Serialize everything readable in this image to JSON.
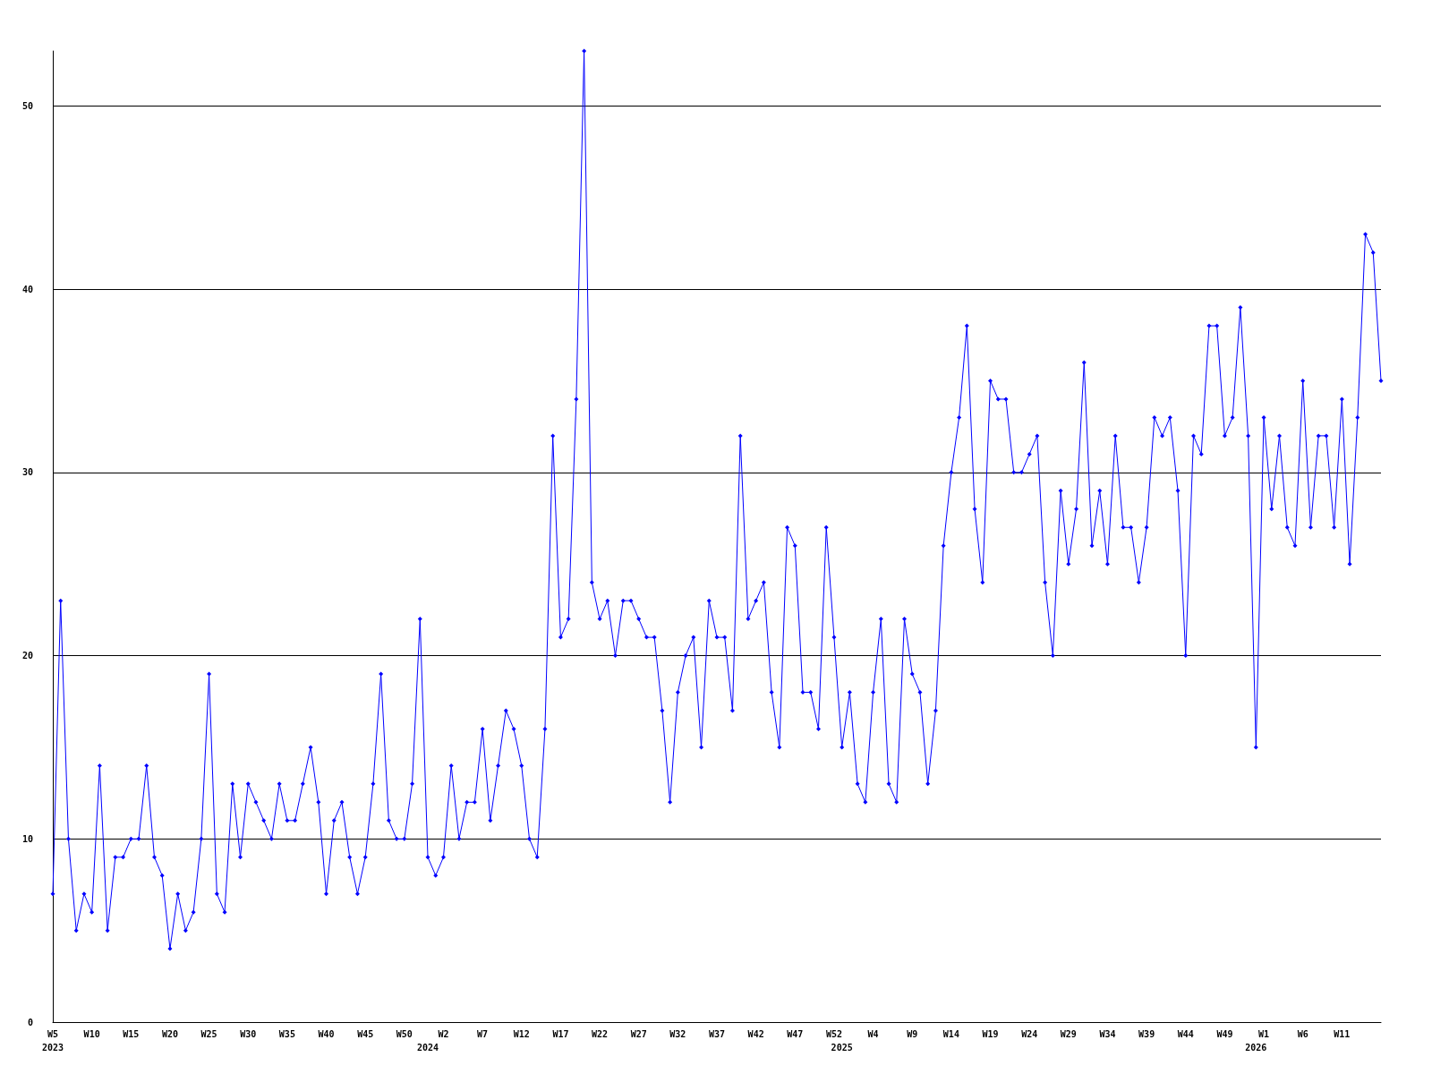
{
  "chart_data": {
    "type": "line",
    "categories": [
      "W5\n2023",
      null,
      null,
      null,
      null,
      "W10",
      null,
      null,
      null,
      null,
      "W15",
      null,
      null,
      null,
      null,
      "W20",
      null,
      null,
      null,
      null,
      "W25",
      null,
      null,
      null,
      null,
      "W30",
      null,
      null,
      null,
      null,
      "W35",
      null,
      null,
      null,
      null,
      "W40",
      null,
      null,
      null,
      null,
      "W45",
      null,
      null,
      null,
      null,
      "W50",
      null,
      null,
      "\n2024",
      null,
      "W2",
      null,
      null,
      null,
      null,
      "W7",
      null,
      null,
      null,
      null,
      "W12",
      null,
      null,
      null,
      null,
      "W17",
      null,
      null,
      null,
      null,
      "W22",
      null,
      null,
      null,
      null,
      "W27",
      null,
      null,
      null,
      null,
      "W32",
      null,
      null,
      null,
      null,
      "W37",
      null,
      null,
      null,
      null,
      "W42",
      null,
      null,
      null,
      null,
      "W47",
      null,
      null,
      null,
      null,
      "W52",
      "\n2025",
      null,
      null,
      null,
      "W4",
      null,
      null,
      null,
      null,
      "W9",
      null,
      null,
      null,
      null,
      "W14",
      null,
      null,
      null,
      null,
      "W19",
      null,
      null,
      null,
      null,
      "W24",
      null,
      null,
      null,
      null,
      "W29",
      null,
      null,
      null,
      null,
      "W34",
      null,
      null,
      null,
      null,
      "W39",
      null,
      null,
      null,
      null,
      "W44",
      null,
      null,
      null,
      null,
      "W49",
      null,
      null,
      null,
      "\n2026",
      "W1",
      null,
      null,
      null,
      null,
      "W6",
      null,
      null,
      null,
      null,
      "W11",
      null,
      null,
      null,
      null,
      null
    ],
    "series": [
      {
        "color": "#0000ff",
        "values": [
          7,
          23,
          10,
          5,
          7,
          6,
          14,
          5,
          9,
          9,
          10,
          10,
          14,
          9,
          8,
          4,
          7,
          5,
          6,
          10,
          19,
          7,
          6,
          13,
          9,
          13,
          12,
          11,
          10,
          13,
          11,
          11,
          13,
          15,
          12,
          7,
          11,
          12,
          9,
          7,
          9,
          13,
          19,
          11,
          10,
          10,
          13,
          22,
          9,
          8,
          9,
          14,
          10,
          12,
          12,
          16,
          11,
          14,
          17,
          16,
          14,
          10,
          9,
          16,
          32,
          21,
          22,
          34,
          53,
          24,
          22,
          23,
          20,
          23,
          23,
          22,
          21,
          21,
          17,
          12,
          18,
          20,
          21,
          15,
          23,
          21,
          21,
          17,
          32,
          22,
          23,
          24,
          18,
          15,
          27,
          26,
          18,
          18,
          16,
          27,
          21,
          15,
          18,
          13,
          12,
          18,
          22,
          13,
          12,
          22,
          19,
          18,
          13,
          17,
          26,
          30,
          33,
          38,
          28,
          24,
          35,
          34,
          34,
          30,
          30,
          31,
          32,
          24,
          20,
          29,
          25,
          28,
          36,
          26,
          29,
          25,
          32,
          27,
          27,
          24,
          27,
          33,
          32,
          33,
          29,
          20,
          32,
          31,
          38,
          38,
          32,
          33,
          39,
          32,
          15,
          33,
          28,
          32,
          27,
          26,
          35,
          27,
          32,
          32,
          27,
          34,
          25,
          33,
          43,
          42,
          35
        ]
      }
    ],
    "ylim": [
      0,
      53
    ],
    "yticks": [
      0,
      10,
      20,
      30,
      40,
      50
    ],
    "grid": "y",
    "marker": "diamond",
    "line_style": "solid"
  }
}
